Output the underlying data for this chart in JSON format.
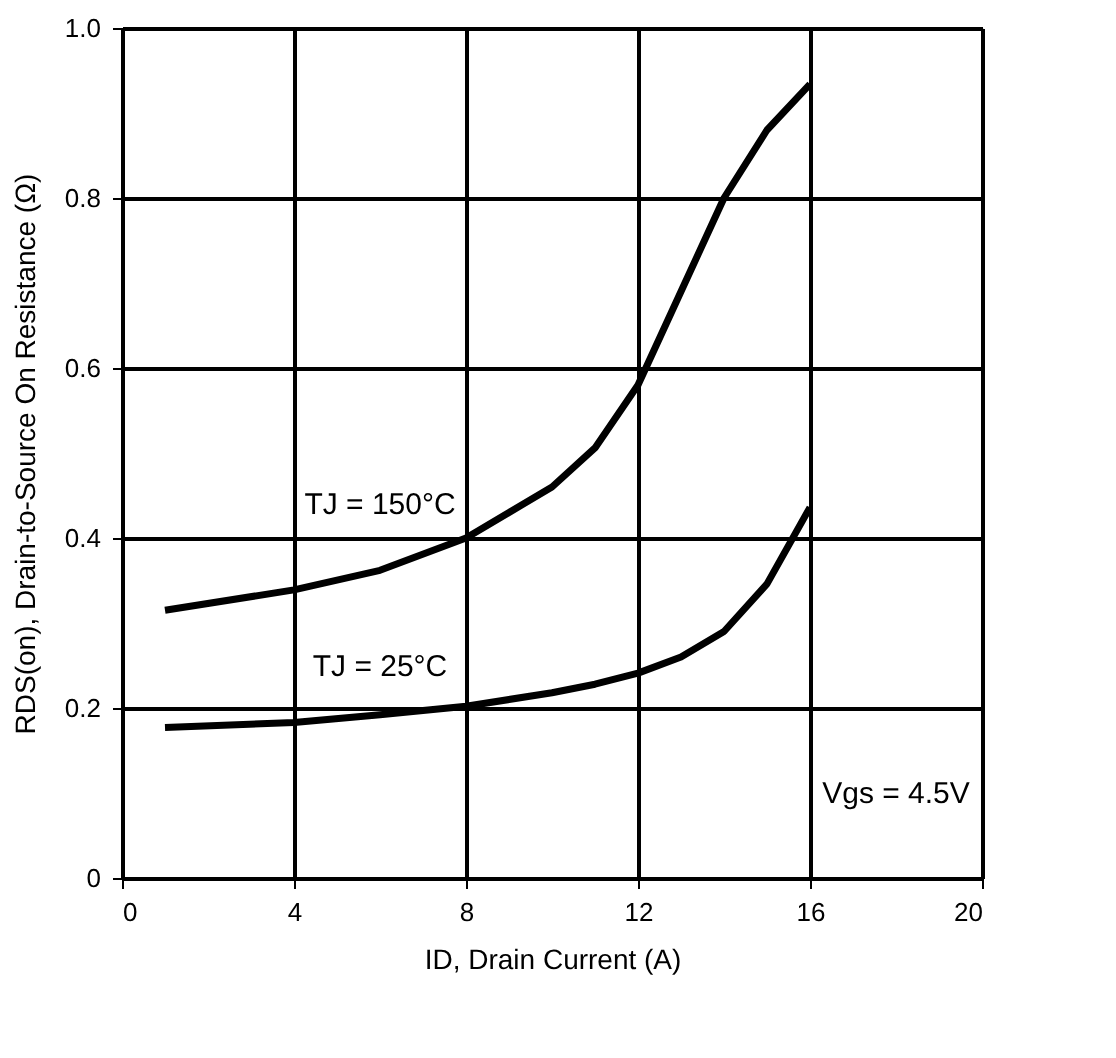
{
  "chart_data": {
    "type": "line",
    "xlabel": "ID, Drain Current (A)",
    "ylabel": "RDS(on),  Drain-to-Source On Resistance (Ω)",
    "x": [
      1,
      4,
      6,
      8,
      10,
      11,
      12,
      13,
      14,
      15,
      16
    ],
    "series": [
      {
        "name": "TJ = 150°C",
        "color": "#000000",
        "values": [
          0.315,
          0.339,
          0.362,
          0.4,
          0.46,
          0.506,
          0.58,
          0.69,
          0.8,
          0.88,
          0.934
        ]
      },
      {
        "name": "TJ = 25°C",
        "color": "#000000",
        "values": [
          0.177,
          0.183,
          0.192,
          0.202,
          0.218,
          0.228,
          0.241,
          0.26,
          0.29,
          0.346,
          0.436
        ]
      }
    ],
    "annotations": [
      "Vgs = 4.5V"
    ],
    "xlim": [
      0,
      20
    ],
    "xticks": [
      0,
      4,
      8,
      12,
      16,
      20
    ],
    "ylim": [
      0,
      1.0
    ],
    "yticks": [
      {
        "value": 0,
        "label": "0"
      },
      0.2,
      0.4,
      0.6,
      0.8,
      {
        "value": 1.0,
        "label": "1.0"
      }
    ],
    "grid": true,
    "legend": false,
    "marker": "none",
    "line_style": "solid"
  }
}
